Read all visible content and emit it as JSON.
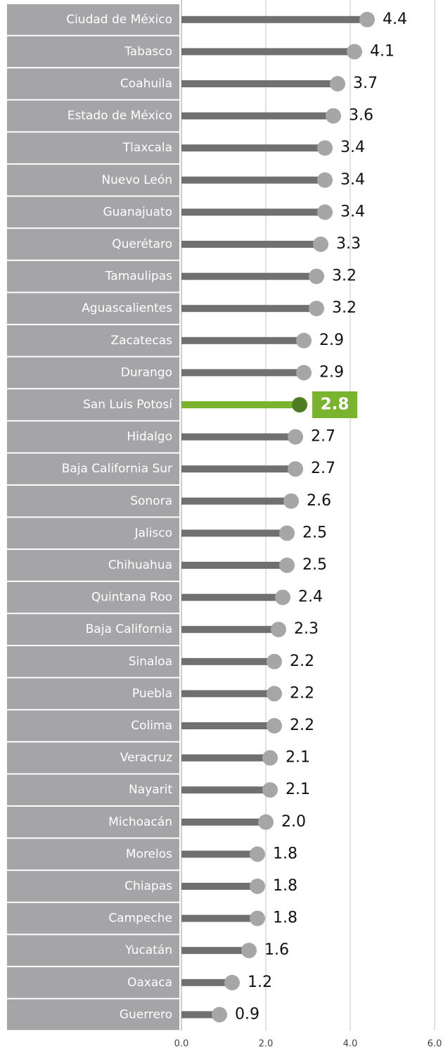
{
  "chart_data": {
    "type": "lollipop",
    "categories": [
      "Ciudad de México",
      "Tabasco",
      "Coahuila",
      "Estado de México",
      "Tlaxcala",
      "Nuevo León",
      "Guanajuato",
      "Querétaro",
      "Tamaulipas",
      "Aguascalientes",
      "Zacatecas",
      "Durango",
      "San Luis Potosí",
      "Hidalgo",
      "Baja California Sur",
      "Sonora",
      "Jalisco",
      "Chihuahua",
      "Quintana Roo",
      "Baja California",
      "Sinaloa",
      "Puebla",
      "Colima",
      "Veracruz",
      "Nayarit",
      "Michoacán",
      "Morelos",
      "Chiapas",
      "Campeche",
      "Yucatán",
      "Oaxaca",
      "Guerrero"
    ],
    "values": [
      4.4,
      4.1,
      3.7,
      3.6,
      3.4,
      3.4,
      3.4,
      3.3,
      3.2,
      3.2,
      2.9,
      2.9,
      2.8,
      2.7,
      2.7,
      2.6,
      2.5,
      2.5,
      2.4,
      2.3,
      2.2,
      2.2,
      2.2,
      2.1,
      2.1,
      2.0,
      1.8,
      1.8,
      1.8,
      1.6,
      1.2,
      0.9
    ],
    "value_labels": [
      "4.4",
      "4.1",
      "3.7",
      "3.6",
      "3.4",
      "3.4",
      "3.4",
      "3.3",
      "3.2",
      "3.2",
      "2.9",
      "2.9",
      "2.8",
      "2.7",
      "2.7",
      "2.6",
      "2.5",
      "2.5",
      "2.4",
      "2.3",
      "2.2",
      "2.2",
      "2.2",
      "2.1",
      "2.1",
      "2.0",
      "1.8",
      "1.8",
      "1.8",
      "1.6",
      "1.2",
      "0.9"
    ],
    "xlim": [
      0,
      6
    ],
    "xticks": [
      {
        "value": 0,
        "label": "0.0"
      },
      {
        "value": 2,
        "label": "2.0"
      },
      {
        "value": 4,
        "label": "4.0"
      },
      {
        "value": 6,
        "label": "6.0"
      }
    ],
    "grid": true,
    "color": "#707070",
    "dot_color": "#a6a6a6",
    "highlight": {
      "index": 12,
      "color": "#7ab32e",
      "dot_color": "#4e7d23"
    }
  }
}
